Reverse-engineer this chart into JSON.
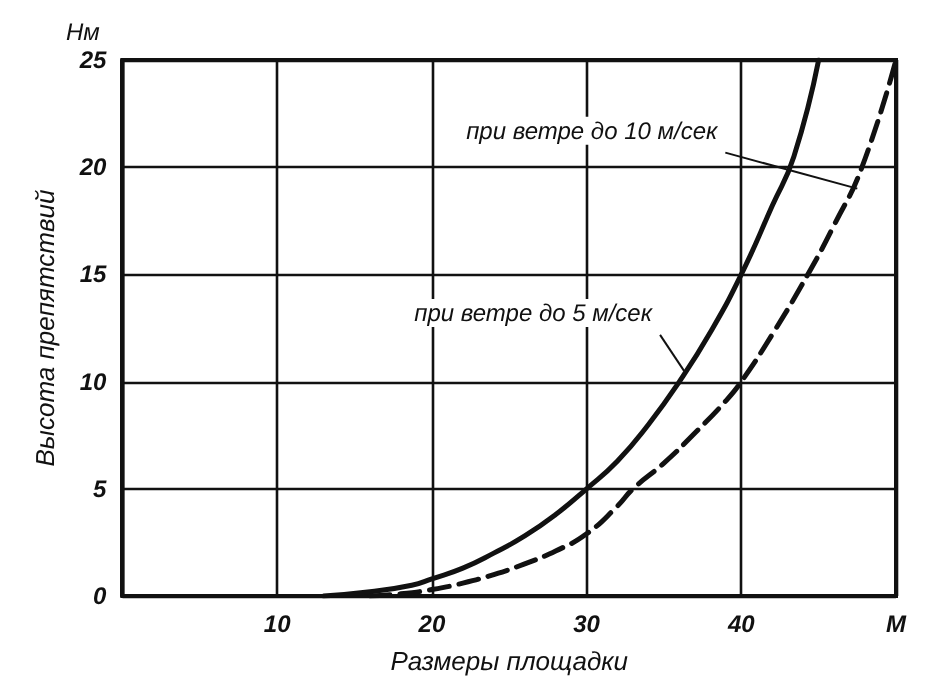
{
  "chart_data": {
    "type": "line",
    "xlabel": "Размеры площадки",
    "ylabel": "Высота препятствий",
    "xlim": [
      0,
      50
    ],
    "ylim": [
      0,
      25
    ],
    "xticks": [
      {
        "value": 0,
        "label": null
      },
      10,
      20,
      30,
      40,
      {
        "value": 50,
        "label": "М"
      }
    ],
    "yticks": [
      0,
      5,
      10,
      15,
      20,
      25
    ],
    "grid": true,
    "marker": "none",
    "series": [
      {
        "color": "#111111",
        "line_style": "solid",
        "x": [
          13,
          16,
          18.7,
          20,
          22,
          24,
          26,
          28,
          30,
          32,
          34,
          36,
          38,
          40,
          42,
          43.4,
          45
        ],
        "values": [
          0,
          0.2,
          0.5,
          0.8,
          1.3,
          2,
          2.8,
          3.8,
          5,
          6.3,
          8,
          10,
          12.3,
          15,
          18.2,
          20.5,
          25
        ]
      },
      {
        "color": "#111111",
        "line_style": "dashed",
        "x": [
          16,
          18,
          20,
          22,
          24,
          26,
          28,
          30,
          32,
          33,
          35,
          37,
          39,
          40,
          42,
          44.3,
          46,
          47.8,
          50
        ],
        "values": [
          0,
          0.1,
          0.3,
          0.6,
          1,
          1.5,
          2.1,
          2.9,
          4.2,
          5,
          6.2,
          7.6,
          9.1,
          10,
          12.2,
          15,
          17.3,
          20,
          25
        ]
      }
    ],
    "annotations": [
      "Hм",
      {
        "text": "при ветре до 10 м/сек",
        "x": 47.5,
        "y": 19
      },
      {
        "text": "при ветре до 5 м/сек",
        "x": 36.3,
        "y": 10.5
      }
    ]
  }
}
